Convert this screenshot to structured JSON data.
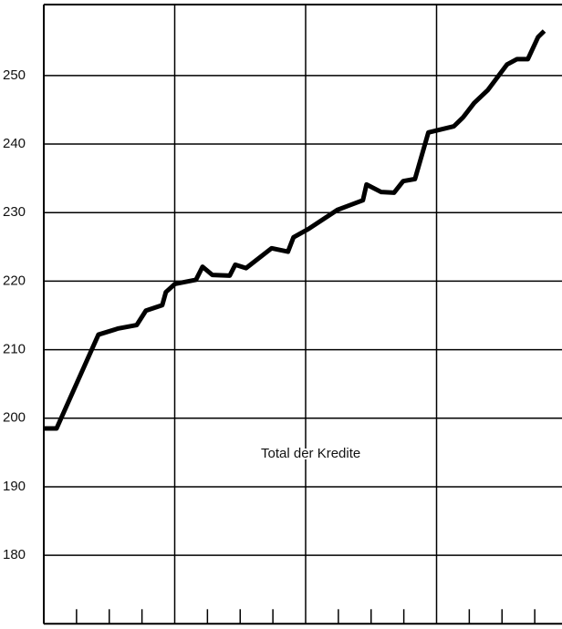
{
  "chart_data": {
    "type": "line",
    "annotation": "Total der Kredite",
    "x": [
      0,
      0.39,
      1.67,
      2.28,
      2.84,
      3.12,
      3.62,
      3.73,
      4.01,
      4.65,
      4.85,
      5.15,
      5.68,
      5.85,
      6.18,
      6.96,
      7.46,
      7.63,
      8.08,
      8.97,
      9.75,
      9.86,
      10.31,
      10.7,
      10.98,
      11.34,
      11.75,
      12.53,
      12.81,
      13.15,
      13.57,
      14.15,
      14.46,
      14.79,
      15.1,
      15.29
    ],
    "series": [
      {
        "color": "#000000",
        "values": [
          198.5,
          198.5,
          212.2,
          213.1,
          213.6,
          215.7,
          216.5,
          218.4,
          219.6,
          220.2,
          222.1,
          220.9,
          220.8,
          222.4,
          221.9,
          224.8,
          224.3,
          226.4,
          227.6,
          230.4,
          231.8,
          234.1,
          233,
          232.9,
          234.6,
          234.9,
          241.7,
          242.6,
          243.9,
          246,
          247.9,
          251.6,
          252.4,
          252.4,
          255.6,
          256.5
        ]
      }
    ],
    "xlim": [
      0,
      16
    ],
    "xticks": [
      1,
      2,
      3,
      5,
      6,
      7,
      9,
      10,
      11,
      13,
      14,
      15
    ],
    "xgrid": [
      0,
      4,
      8,
      12
    ],
    "ylim": [
      170,
      260
    ],
    "yticks": [
      180,
      190,
      200,
      210,
      220,
      230,
      240,
      250
    ],
    "grid": true
  }
}
